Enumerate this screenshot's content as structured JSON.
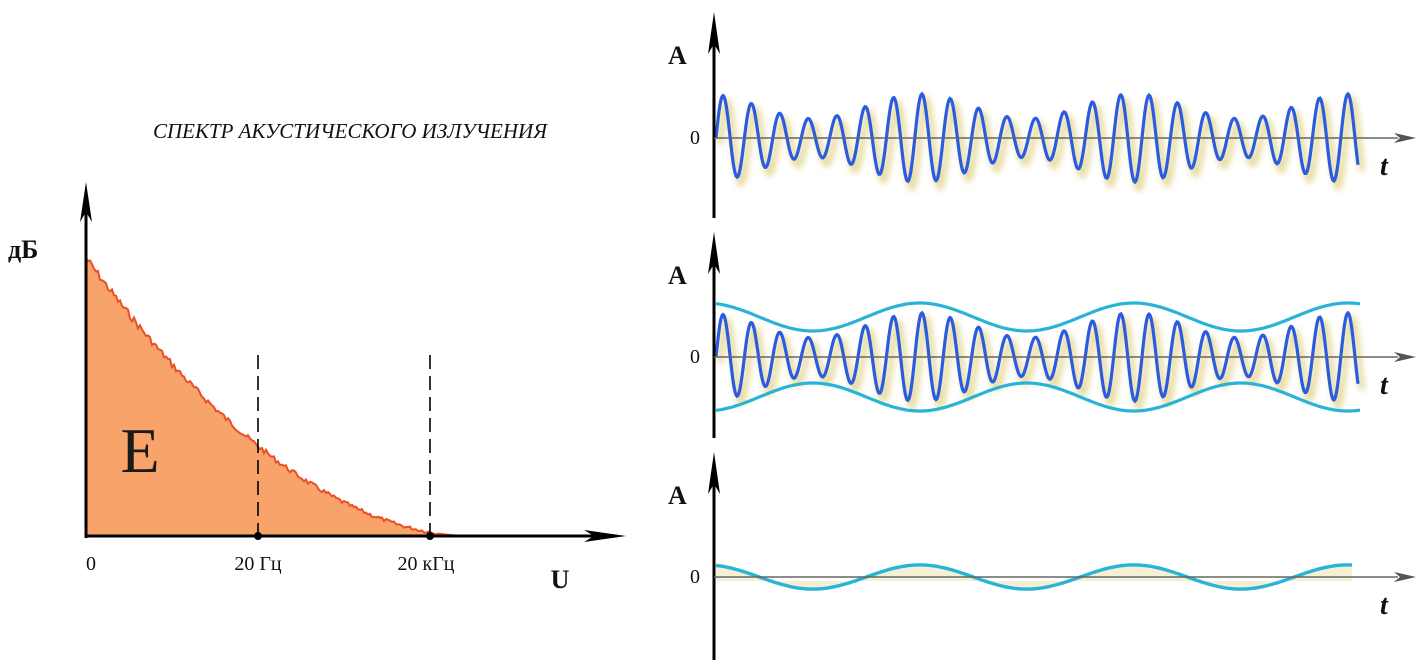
{
  "spectrum": {
    "title": "СПЕКТР АКУСТИЧЕСКОГО ИЗЛУЧЕНИЯ",
    "y_axis_label": "дБ",
    "x_axis_label": "U",
    "area_label": "E",
    "x_ticks": [
      "0",
      "20 Гц",
      "20 кГц"
    ],
    "colors": {
      "fill": "#f7a36a",
      "edge": "#e8502a",
      "axis": "#000000"
    }
  },
  "waveforms": [
    {
      "y_label": "A",
      "zero_label": "0",
      "t_label": "t"
    },
    {
      "y_label": "A",
      "zero_label": "0",
      "t_label": "t"
    },
    {
      "y_label": "A",
      "zero_label": "0",
      "t_label": "t"
    }
  ],
  "colors": {
    "carrier": "#2a5be0",
    "envelope": "#29b3d6",
    "shadow": "#e9dfa8"
  }
}
